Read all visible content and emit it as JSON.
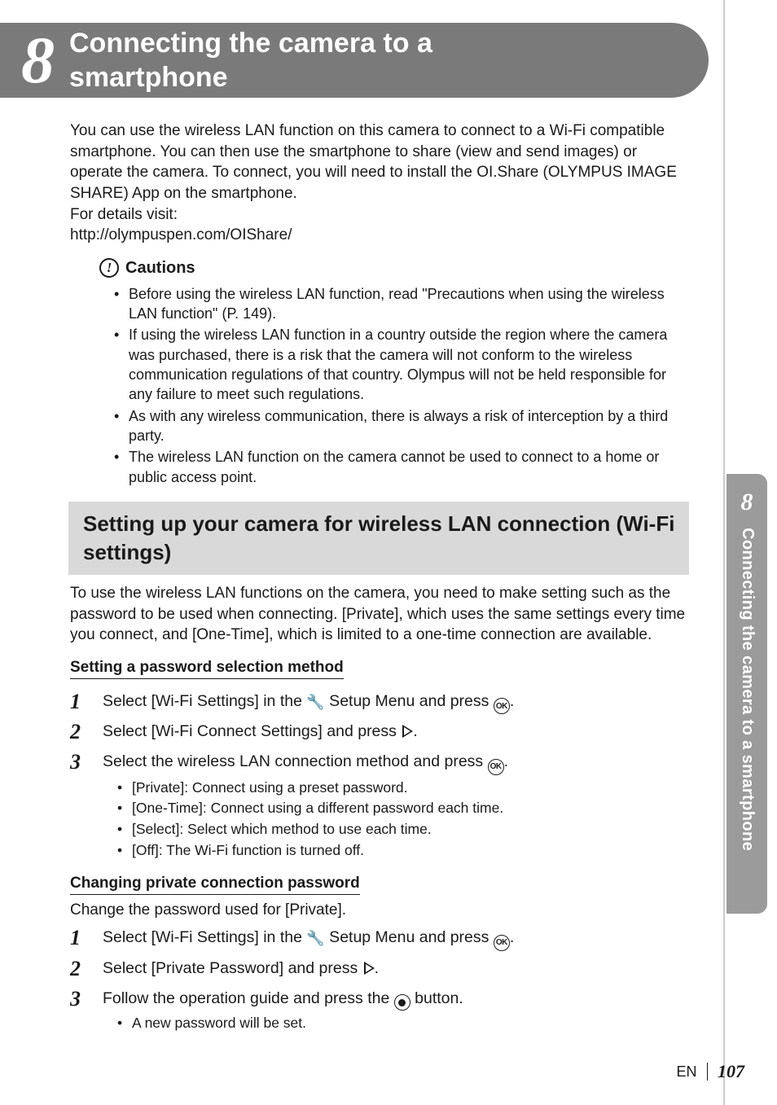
{
  "chapter": {
    "number": "8",
    "title_line1": "Connecting the camera to a",
    "title_line2": "smartphone"
  },
  "side_tab": {
    "number": "8",
    "label": "Connecting the camera to a smartphone"
  },
  "intro": {
    "p1": "You can use the wireless LAN function on this camera to connect to a Wi-Fi compatible smartphone. You can then use the smartphone to share (view and send images) or operate the camera. To connect, you will need to install the OI.Share (OLYMPUS IMAGE SHARE) App on the smartphone.",
    "p2": "For details visit:",
    "p3": "http://olympuspen.com/OIShare/"
  },
  "cautions": {
    "heading": "Cautions",
    "items": [
      "Before using the wireless LAN function, read \"Precautions when using the wireless LAN function\" (P. 149).",
      "If using the wireless LAN function in a country outside the region where the camera was purchased, there is a risk that the camera will not conform to the wireless communication regulations of that country. Olympus will not be held responsible for any failure to meet such regulations.",
      "As with any wireless communication, there is always a risk of interception by a third party.",
      "The wireless LAN function on the camera cannot be used to connect to a home or public access point."
    ]
  },
  "section": {
    "heading": "Setting up your camera for wireless LAN connection (Wi-Fi settings)",
    "body": "To use the wireless LAN functions on the camera, you need to make setting such as the password to be used when connecting. [Private], which uses the same settings every time you connect, and [One-Time], which is limited to a one-time connection are available."
  },
  "sub1": {
    "heading": "Setting a password selection method",
    "steps": {
      "s1_a": "Select [Wi-Fi Settings] in the ",
      "s1_b": " Setup Menu and press ",
      "s1_c": ".",
      "s2_a": "Select [Wi-Fi Connect Settings] and press ",
      "s2_b": ".",
      "s3_a": "Select the wireless LAN connection method and press ",
      "s3_b": "."
    },
    "s3_items": [
      "[Private]: Connect using a preset password.",
      "[One-Time]: Connect using a different password each time.",
      "[Select]: Select which method to use each time.",
      "[Off]: The Wi-Fi function is turned off."
    ]
  },
  "sub2": {
    "heading": "Changing private connection password",
    "lead": "Change the password used for [Private].",
    "steps": {
      "s1_a": "Select [Wi-Fi Settings] in the ",
      "s1_b": " Setup Menu and press ",
      "s1_c": ".",
      "s2_a": "Select [Private Password] and press ",
      "s2_b": ".",
      "s3_a": "Follow the operation guide and press the ",
      "s3_b": " button."
    },
    "s3_items": [
      "A new password will be set."
    ]
  },
  "footer": {
    "lang": "EN",
    "page": "107"
  },
  "icons": {
    "ok_label": "OK",
    "wrench": "🔧"
  },
  "colors": {
    "banner_bg": "#7a7a7a",
    "sidetab_bg": "#9b9b9b",
    "section_bg": "#d9d9d9",
    "text": "#1a1a1a",
    "page_bg": "#ffffff",
    "outer_bg": "#808080"
  }
}
